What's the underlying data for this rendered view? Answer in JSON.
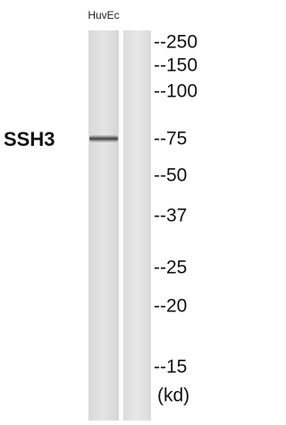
{
  "lane_label": "HuvEc",
  "protein_label": "SSH3",
  "markers": [
    "--250",
    "--150",
    "--100",
    "--75",
    "--50",
    "--37",
    "--25",
    "--20",
    "--15"
  ],
  "unit_label": "(kd)"
}
